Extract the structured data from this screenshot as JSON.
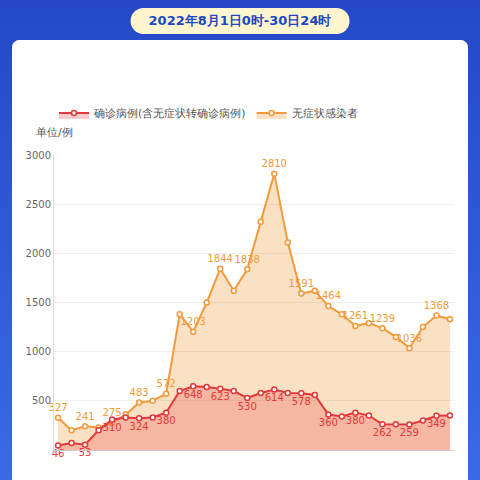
{
  "chart_data": {
    "type": "area",
    "title": "2022年8月1日0时-30日24时",
    "ylabel": "单位/例",
    "categories": [
      null,
      null,
      null,
      null,
      null,
      null,
      null,
      null,
      null,
      null,
      null,
      null,
      null,
      null,
      null,
      null,
      null,
      null,
      null,
      null,
      null,
      null,
      null,
      null,
      null,
      null,
      null,
      null,
      null,
      null
    ],
    "series": [
      {
        "name": "确诊病例(含无症状转确诊病例)",
        "color": "#e2393c",
        "values": [
          46,
          70,
          53,
          200,
          310,
          330,
          324,
          330,
          380,
          600,
          648,
          640,
          623,
          600,
          530,
          580,
          614,
          580,
          578,
          560,
          360,
          340,
          380,
          350,
          262,
          262,
          259,
          300,
          349,
          350
        ],
        "value_labels": [
          "46",
          null,
          "53",
          null,
          "310",
          null,
          "324",
          null,
          "380",
          null,
          "648",
          null,
          "623",
          null,
          "530",
          null,
          "614",
          null,
          "578",
          null,
          "360",
          null,
          "380",
          null,
          "262",
          null,
          "259",
          null,
          "349",
          null
        ]
      },
      {
        "name": "无症状感染者",
        "color": "#f39a3c",
        "values": [
          327,
          200,
          241,
          230,
          275,
          360,
          483,
          500,
          572,
          1380,
          1203,
          1500,
          1844,
          1620,
          1838,
          2320,
          2810,
          2110,
          1591,
          1620,
          1464,
          1380,
          1261,
          1290,
          1239,
          1150,
          1036,
          1250,
          1368,
          1330
        ],
        "value_labels": [
          "327",
          null,
          "241",
          null,
          "275",
          null,
          "483",
          null,
          "572",
          null,
          "1203",
          null,
          "1844",
          null,
          "1838",
          null,
          "2810",
          null,
          "1591",
          null,
          "1464",
          null,
          "1261",
          null,
          "1239",
          null,
          "1036",
          null,
          "1368",
          null
        ]
      }
    ],
    "ylim": [
      0,
      3000
    ],
    "yticks": [
      500,
      1000,
      1500,
      2000,
      2500,
      3000
    ],
    "grid": true,
    "legend": "top",
    "data_labels": true,
    "tick_labels": "y"
  }
}
